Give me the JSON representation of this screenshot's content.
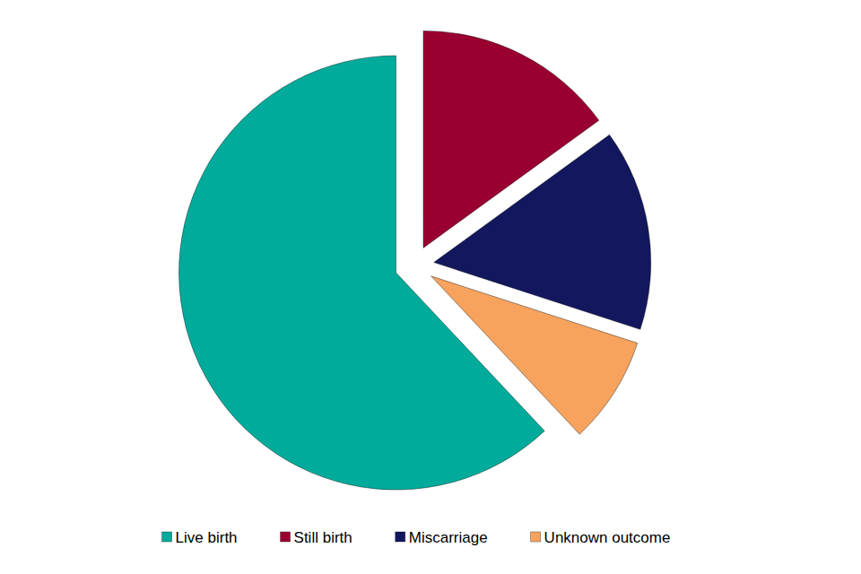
{
  "chart_data": {
    "type": "pie",
    "categories": [
      "Live birth",
      "Still birth",
      "Miscarriage",
      "Unknown outcome"
    ],
    "values": [
      62,
      15,
      15,
      8
    ],
    "colors": [
      "#00ab9b",
      "#990030",
      "#13175e",
      "#f7a35e"
    ],
    "legend": "bottom"
  }
}
